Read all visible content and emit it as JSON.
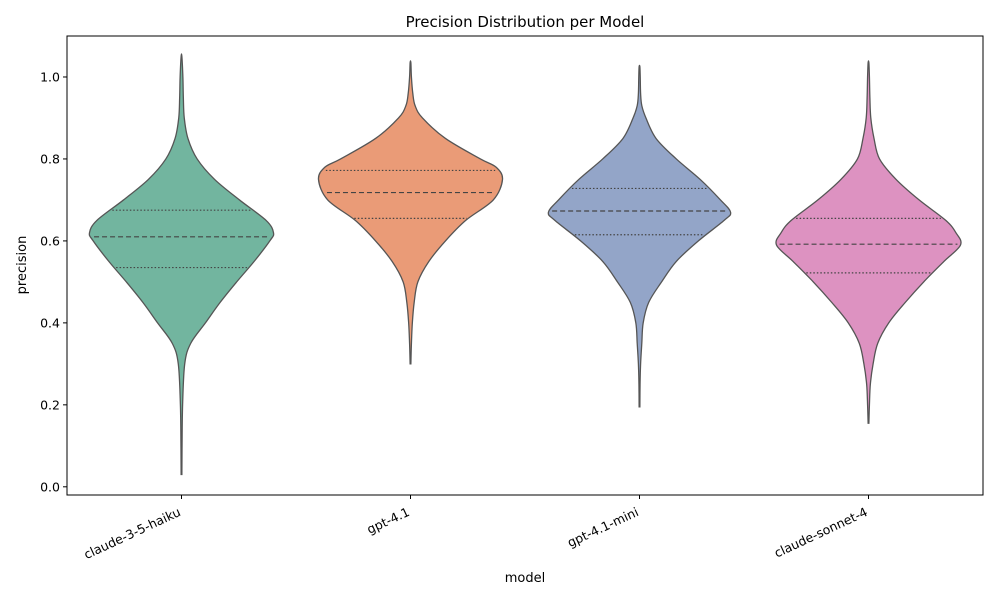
{
  "chart_data": {
    "type": "violin",
    "title": "Precision Distribution per Model",
    "xlabel": "model",
    "ylabel": "precision",
    "ylim": [
      -0.02,
      1.1
    ],
    "yticks": [
      0.0,
      0.2,
      0.4,
      0.6,
      0.8,
      1.0
    ],
    "ytick_labels": [
      "0.0",
      "0.2",
      "0.4",
      "0.6",
      "0.8",
      "1.0"
    ],
    "categories": [
      "claude-3-5-haiku",
      "gpt-4.1",
      "gpt-4.1-mini",
      "claude-sonnet-4"
    ],
    "colors": [
      "#72b59f",
      "#ea9b77",
      "#93a5c8",
      "#dd92c1"
    ],
    "outline_color": "#555555",
    "grid": false,
    "series": [
      {
        "name": "claude-3-5-haiku",
        "min": 0.03,
        "max": 1.05,
        "q1": 0.535,
        "median": 0.61,
        "q3": 0.675,
        "profile": [
          [
            0.03,
            0.004
          ],
          [
            0.1,
            0.006
          ],
          [
            0.2,
            0.012
          ],
          [
            0.3,
            0.035
          ],
          [
            0.35,
            0.1
          ],
          [
            0.4,
            0.26
          ],
          [
            0.45,
            0.42
          ],
          [
            0.5,
            0.6
          ],
          [
            0.55,
            0.79
          ],
          [
            0.6,
            0.96
          ],
          [
            0.62,
            1.0
          ],
          [
            0.65,
            0.92
          ],
          [
            0.7,
            0.63
          ],
          [
            0.75,
            0.36
          ],
          [
            0.8,
            0.17
          ],
          [
            0.85,
            0.07
          ],
          [
            0.9,
            0.03
          ],
          [
            0.95,
            0.02
          ],
          [
            1.0,
            0.015
          ],
          [
            1.05,
            0.004
          ]
        ]
      },
      {
        "name": "gpt-4.1",
        "min": 0.3,
        "max": 1.035,
        "q1": 0.655,
        "median": 0.718,
        "q3": 0.772,
        "profile": [
          [
            0.3,
            0.004
          ],
          [
            0.35,
            0.01
          ],
          [
            0.4,
            0.02
          ],
          [
            0.45,
            0.04
          ],
          [
            0.5,
            0.08
          ],
          [
            0.55,
            0.2
          ],
          [
            0.6,
            0.38
          ],
          [
            0.65,
            0.6
          ],
          [
            0.7,
            0.9
          ],
          [
            0.75,
            1.0
          ],
          [
            0.78,
            0.93
          ],
          [
            0.8,
            0.76
          ],
          [
            0.85,
            0.38
          ],
          [
            0.9,
            0.13
          ],
          [
            0.93,
            0.05
          ],
          [
            0.96,
            0.025
          ],
          [
            1.0,
            0.01
          ],
          [
            1.035,
            0.004
          ]
        ]
      },
      {
        "name": "gpt-4.1-mini",
        "min": 0.195,
        "max": 1.025,
        "q1": 0.615,
        "median": 0.673,
        "q3": 0.728,
        "profile": [
          [
            0.195,
            0.004
          ],
          [
            0.25,
            0.006
          ],
          [
            0.3,
            0.012
          ],
          [
            0.35,
            0.025
          ],
          [
            0.4,
            0.04
          ],
          [
            0.45,
            0.1
          ],
          [
            0.5,
            0.24
          ],
          [
            0.55,
            0.4
          ],
          [
            0.6,
            0.64
          ],
          [
            0.65,
            0.92
          ],
          [
            0.67,
            0.99
          ],
          [
            0.7,
            0.88
          ],
          [
            0.75,
            0.66
          ],
          [
            0.8,
            0.4
          ],
          [
            0.85,
            0.18
          ],
          [
            0.9,
            0.07
          ],
          [
            0.93,
            0.025
          ],
          [
            0.96,
            0.012
          ],
          [
            1.0,
            0.008
          ],
          [
            1.025,
            0.004
          ]
        ]
      },
      {
        "name": "claude-sonnet-4",
        "min": 0.155,
        "max": 1.035,
        "q1": 0.522,
        "median": 0.592,
        "q3": 0.655,
        "profile": [
          [
            0.155,
            0.004
          ],
          [
            0.2,
            0.01
          ],
          [
            0.25,
            0.02
          ],
          [
            0.3,
            0.05
          ],
          [
            0.35,
            0.1
          ],
          [
            0.4,
            0.22
          ],
          [
            0.45,
            0.4
          ],
          [
            0.5,
            0.6
          ],
          [
            0.55,
            0.82
          ],
          [
            0.59,
            1.0
          ],
          [
            0.62,
            0.95
          ],
          [
            0.65,
            0.84
          ],
          [
            0.7,
            0.55
          ],
          [
            0.75,
            0.3
          ],
          [
            0.8,
            0.12
          ],
          [
            0.85,
            0.06
          ],
          [
            0.9,
            0.025
          ],
          [
            0.95,
            0.015
          ],
          [
            1.0,
            0.01
          ],
          [
            1.035,
            0.004
          ]
        ]
      }
    ]
  }
}
